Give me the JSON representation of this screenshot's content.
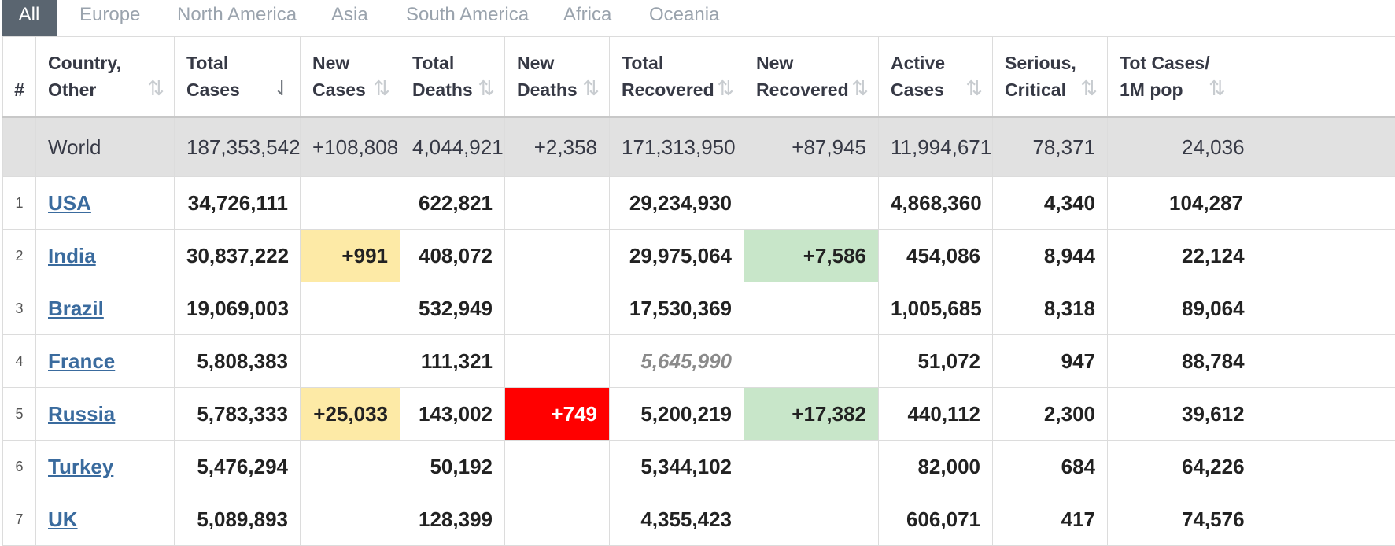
{
  "tabs": [
    {
      "label": "All",
      "active": true
    },
    {
      "label": "Europe",
      "active": false
    },
    {
      "label": "North America",
      "active": false
    },
    {
      "label": "Asia",
      "active": false
    },
    {
      "label": "South America",
      "active": false
    },
    {
      "label": "Africa",
      "active": false
    },
    {
      "label": "Oceania",
      "active": false
    }
  ],
  "headers": {
    "rank": "#",
    "country": [
      "Country,",
      "Other"
    ],
    "total_cases": [
      "Total",
      "Cases"
    ],
    "new_cases": [
      "New",
      "Cases"
    ],
    "total_deaths": [
      "Total",
      "Deaths"
    ],
    "new_deaths": [
      "New",
      "Deaths"
    ],
    "total_recovered": [
      "Total",
      "Recovered"
    ],
    "new_recovered": [
      "New",
      "Recovered"
    ],
    "active_cases": [
      "Active",
      "Cases"
    ],
    "serious_critical": [
      "Serious,",
      "Critical"
    ],
    "tot_cases_per_1m": [
      "Tot Cases/",
      "1M pop"
    ]
  },
  "icons": {
    "sort": "sort-icon",
    "sort_active": "sort-desc-icon"
  },
  "colors": {
    "new_cases_highlight": "#fdeaa6",
    "new_recovered_highlight": "#c8e6c9",
    "new_deaths_highlight": "#ff0000",
    "world_row": "#e1e1e1",
    "active_tab": "#5a6570",
    "link": "#3a6b9e"
  },
  "world": {
    "country": "World",
    "total_cases": "187,353,542",
    "new_cases": "+108,808",
    "total_deaths": "4,044,921",
    "new_deaths": "+2,358",
    "total_recovered": "171,313,950",
    "new_recovered": "+87,945",
    "active_cases": "11,994,671",
    "serious_critical": "78,371",
    "tot_cases_per_1m": "24,036"
  },
  "rows": [
    {
      "rank": "1",
      "country": "USA",
      "total_cases": "34,726,111",
      "new_cases": "",
      "total_deaths": "622,821",
      "new_deaths": "",
      "total_recovered": "29,234,930",
      "new_recovered": "",
      "active_cases": "4,868,360",
      "serious_critical": "4,340",
      "tot_cases_per_1m": "104,287"
    },
    {
      "rank": "2",
      "country": "India",
      "total_cases": "30,837,222",
      "new_cases": "+991",
      "total_deaths": "408,072",
      "new_deaths": "",
      "total_recovered": "29,975,064",
      "new_recovered": "+7,586",
      "active_cases": "454,086",
      "serious_critical": "8,944",
      "tot_cases_per_1m": "22,124"
    },
    {
      "rank": "3",
      "country": "Brazil",
      "total_cases": "19,069,003",
      "new_cases": "",
      "total_deaths": "532,949",
      "new_deaths": "",
      "total_recovered": "17,530,369",
      "new_recovered": "",
      "active_cases": "1,005,685",
      "serious_critical": "8,318",
      "tot_cases_per_1m": "89,064"
    },
    {
      "rank": "4",
      "country": "France",
      "total_cases": "5,808,383",
      "new_cases": "",
      "total_deaths": "111,321",
      "new_deaths": "",
      "total_recovered": "5,645,990",
      "new_recovered": "",
      "active_cases": "51,072",
      "serious_critical": "947",
      "tot_cases_per_1m": "88,784"
    },
    {
      "rank": "5",
      "country": "Russia",
      "total_cases": "5,783,333",
      "new_cases": "+25,033",
      "total_deaths": "143,002",
      "new_deaths": "+749",
      "total_recovered": "5,200,219",
      "new_recovered": "+17,382",
      "active_cases": "440,112",
      "serious_critical": "2,300",
      "tot_cases_per_1m": "39,612"
    },
    {
      "rank": "6",
      "country": "Turkey",
      "total_cases": "5,476,294",
      "new_cases": "",
      "total_deaths": "50,192",
      "new_deaths": "",
      "total_recovered": "5,344,102",
      "new_recovered": "",
      "active_cases": "82,000",
      "serious_critical": "684",
      "tot_cases_per_1m": "64,226"
    },
    {
      "rank": "7",
      "country": "UK",
      "total_cases": "5,089,893",
      "new_cases": "",
      "total_deaths": "128,399",
      "new_deaths": "",
      "total_recovered": "4,355,423",
      "new_recovered": "",
      "active_cases": "606,071",
      "serious_critical": "417",
      "tot_cases_per_1m": "74,576"
    }
  ]
}
